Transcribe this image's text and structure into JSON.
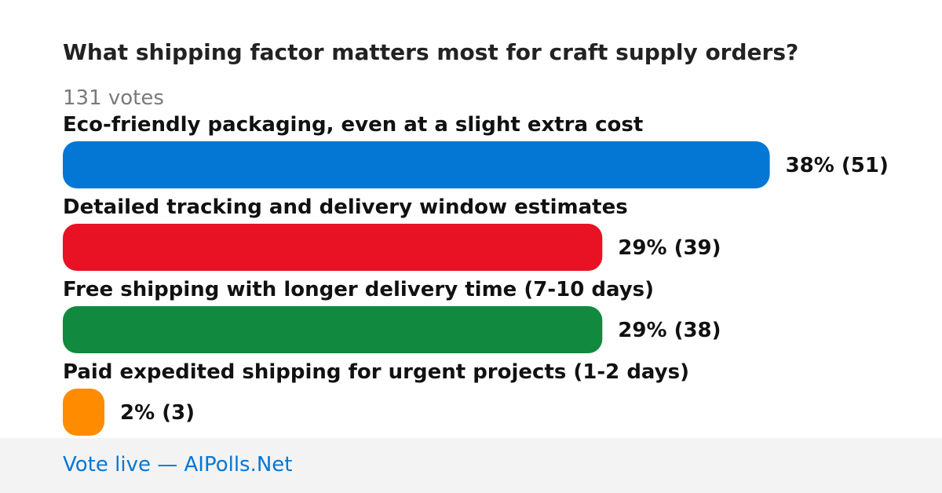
{
  "poll": {
    "title": "What shipping factor matters most for craft supply orders?",
    "votes_label": "131 votes"
  },
  "chart_data": {
    "type": "bar",
    "orientation": "horizontal",
    "title": "What shipping factor matters most for craft supply orders?",
    "total_votes": 131,
    "categories": [
      "Eco-friendly packaging, even at a slight extra cost",
      "Detailed tracking and delivery window estimates",
      "Free shipping with longer delivery time (7-10 days)",
      "Paid expedited shipping for urgent projects (1-2 days)"
    ],
    "values": [
      51,
      39,
      38,
      3
    ],
    "percents": [
      38,
      29,
      29,
      2
    ],
    "value_labels": [
      "38% (51)",
      "29% (39)",
      "29% (38)",
      "2% (3)"
    ],
    "colors": [
      "#0477d4",
      "#e81224",
      "#11893f",
      "#ff8c00"
    ],
    "grid": false,
    "legend": "none"
  },
  "footer": {
    "link_text": "Vote live — AIPolls.Net"
  }
}
